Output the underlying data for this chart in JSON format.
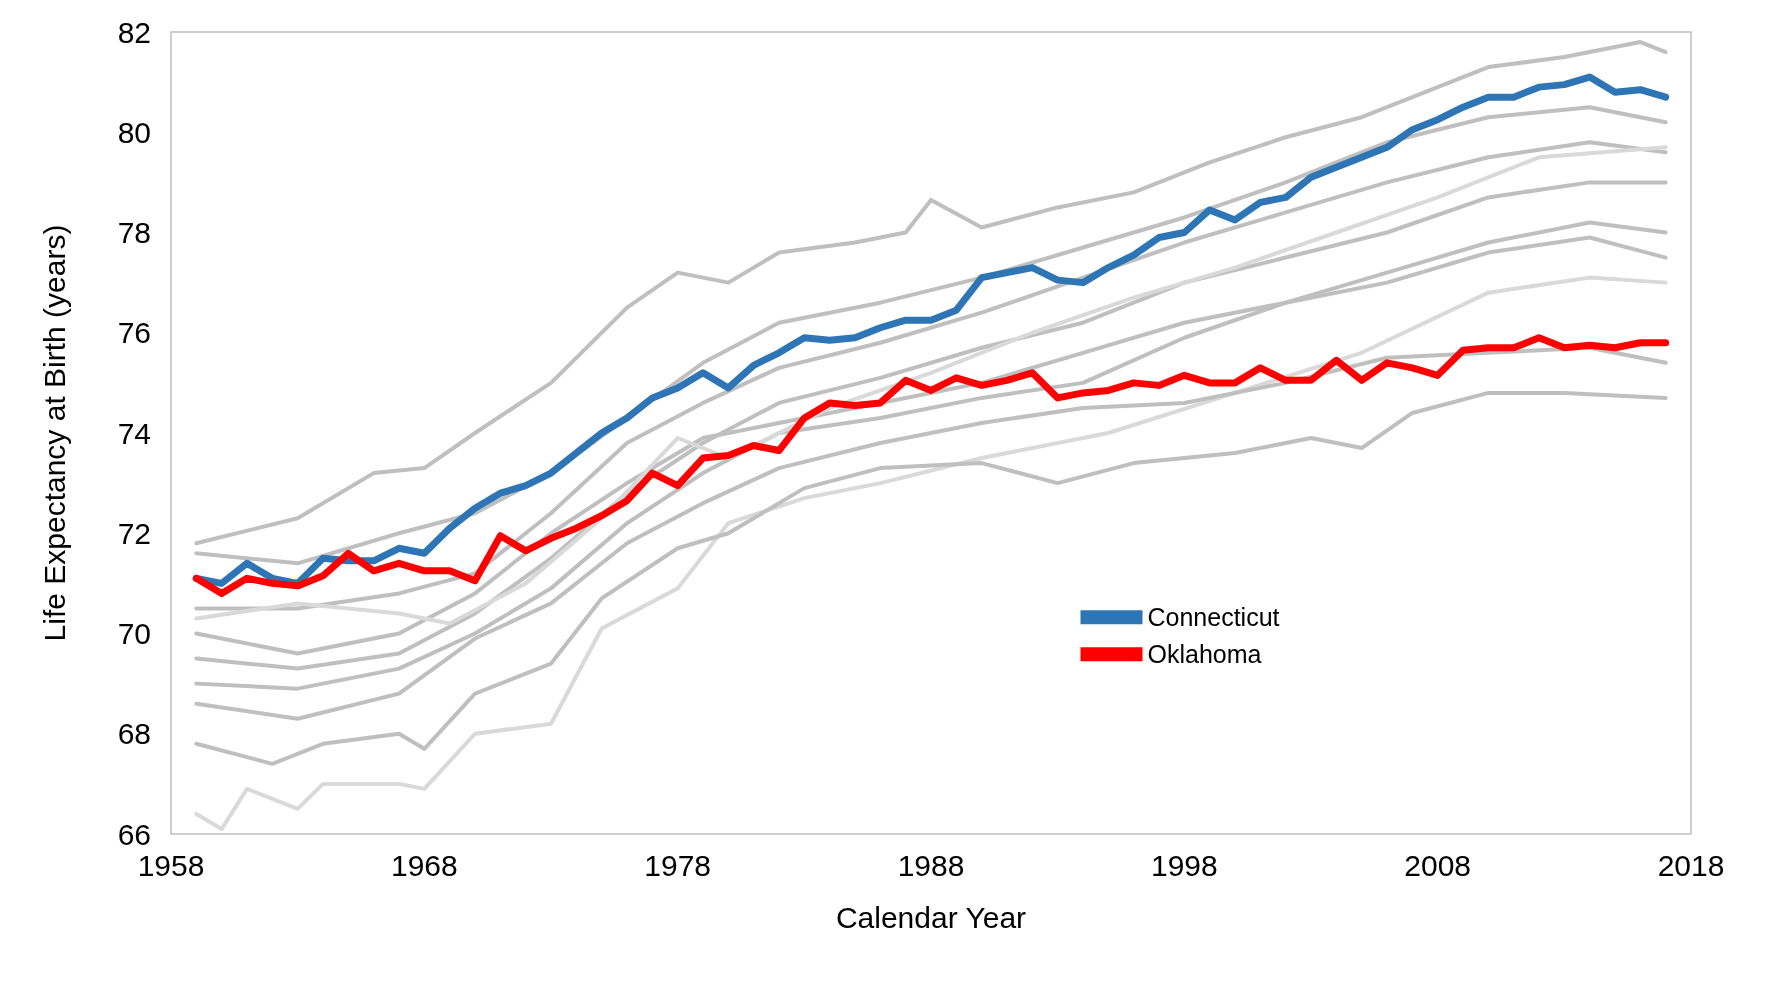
{
  "chart_data": {
    "type": "line",
    "xlabel": "Calendar Year",
    "ylabel": "Life Expectancy at Birth (years)",
    "xlim": [
      1958,
      2018
    ],
    "xticks": [
      1958,
      1968,
      1978,
      1988,
      1998,
      2008,
      2018
    ],
    "ylim": [
      66,
      82
    ],
    "yticks": [
      66,
      68,
      70,
      72,
      74,
      76,
      78,
      80,
      82
    ],
    "grid": false,
    "legend": "bottom",
    "marker": "none",
    "line_style": "solid",
    "series": [
      {
        "color": "#bfbfbf",
        "x": [
          1959,
          1963,
          1966,
          1968,
          1970,
          1973,
          1976,
          1978,
          1980,
          1982,
          1985,
          1987,
          1988,
          1990,
          1993,
          1996,
          1999,
          2002,
          2005,
          2008,
          2010,
          2013,
          2016,
          2017
        ],
        "values": [
          71.8,
          72.3,
          73.2,
          73.3,
          74.0,
          75.0,
          76.5,
          77.2,
          77.0,
          77.6,
          77.8,
          78.0,
          78.65,
          78.1,
          78.5,
          78.8,
          79.4,
          79.9,
          80.3,
          80.9,
          81.3,
          81.5,
          81.8,
          81.6
        ]
      },
      {
        "color": "#d9d9d9",
        "x": [
          1959,
          1960,
          1961,
          1963,
          1964,
          1967,
          1968,
          1970,
          1973,
          1975,
          1978,
          1980,
          1983,
          1986,
          1990,
          1995,
          2000,
          2005,
          2010,
          2014,
          2017
        ],
        "values": [
          66.4,
          66.1,
          66.9,
          66.5,
          67.0,
          67.0,
          66.9,
          68.0,
          68.2,
          70.1,
          70.9,
          72.2,
          72.7,
          73.0,
          73.5,
          74.0,
          74.8,
          75.6,
          76.8,
          77.1,
          77.0
        ]
      },
      {
        "color": "#bfbfbf",
        "x": [
          1959,
          1962,
          1964,
          1967,
          1968,
          1970,
          1973,
          1975,
          1978,
          1980,
          1983,
          1986,
          1990,
          1993,
          1996,
          2000,
          2003,
          2005,
          2007,
          2010,
          2013,
          2017
        ],
        "values": [
          67.8,
          67.4,
          67.8,
          68.0,
          67.7,
          68.8,
          69.4,
          70.7,
          71.7,
          72.0,
          72.9,
          73.3,
          73.4,
          73.0,
          73.4,
          73.6,
          73.9,
          73.7,
          74.4,
          74.8,
          74.8,
          74.7
        ]
      },
      {
        "color": "#bfbfbf",
        "x": [
          1959,
          1963,
          1967,
          1970,
          1973,
          1976,
          1979,
          1982,
          1986,
          1990,
          1994,
          1998,
          2002,
          2006,
          2010,
          2014,
          2017
        ],
        "values": [
          68.6,
          68.3,
          68.8,
          69.9,
          70.6,
          71.8,
          72.6,
          73.3,
          73.8,
          74.2,
          74.5,
          74.6,
          75.0,
          75.5,
          75.6,
          75.7,
          75.4
        ]
      },
      {
        "color": "#bfbfbf",
        "x": [
          1959,
          1963,
          1967,
          1970,
          1973,
          1976,
          1979,
          1982,
          1986,
          1990,
          1994,
          1998,
          2002,
          2006,
          2010,
          2014,
          2017
        ],
        "values": [
          69.5,
          69.3,
          69.6,
          70.4,
          71.5,
          72.8,
          73.8,
          74.6,
          75.1,
          75.7,
          76.2,
          77.0,
          77.5,
          78.0,
          78.7,
          79.0,
          79.0
        ]
      },
      {
        "color": "#bfbfbf",
        "x": [
          1959,
          1963,
          1967,
          1970,
          1973,
          1976,
          1979,
          1982,
          1986,
          1990,
          1994,
          1998,
          2002,
          2006,
          2010,
          2014,
          2017
        ],
        "values": [
          70.5,
          70.5,
          70.8,
          71.2,
          72.4,
          73.8,
          74.6,
          75.3,
          75.8,
          76.4,
          77.1,
          77.8,
          78.4,
          79.0,
          79.5,
          79.8,
          79.6
        ]
      },
      {
        "color": "#bfbfbf",
        "x": [
          1959,
          1963,
          1967,
          1970,
          1973,
          1976,
          1979,
          1982,
          1986,
          1990,
          1994,
          1998,
          2002,
          2006,
          2010,
          2014,
          2017
        ],
        "values": [
          71.6,
          71.4,
          72.0,
          72.4,
          73.2,
          74.3,
          75.4,
          76.2,
          76.6,
          77.1,
          77.7,
          78.3,
          79.0,
          79.8,
          80.3,
          80.5,
          80.2
        ]
      },
      {
        "color": "#bfbfbf",
        "x": [
          1959,
          1963,
          1967,
          1970,
          1973,
          1976,
          1979,
          1982,
          1986,
          1990,
          1994,
          1998,
          2002,
          2006,
          2010,
          2014,
          2017
        ],
        "values": [
          70.0,
          69.6,
          70.0,
          70.8,
          72.0,
          73.0,
          73.9,
          74.2,
          74.6,
          75.0,
          75.6,
          76.2,
          76.6,
          77.2,
          77.8,
          78.2,
          78.0
        ]
      },
      {
        "color": "#bfbfbf",
        "x": [
          1959,
          1963,
          1967,
          1970,
          1973,
          1976,
          1979,
          1982,
          1986,
          1990,
          1994,
          1998,
          2002,
          2006,
          2010,
          2014,
          2017
        ],
        "values": [
          69.0,
          68.9,
          69.3,
          70.0,
          70.9,
          72.2,
          73.2,
          74.0,
          74.3,
          74.7,
          75.0,
          75.9,
          76.6,
          77.0,
          77.6,
          77.9,
          77.5
        ]
      },
      {
        "color": "#d9d9d9",
        "x": [
          1959,
          1963,
          1967,
          1969,
          1972,
          1975,
          1978,
          1980,
          1984,
          1988,
          1992,
          1996,
          2000,
          2004,
          2008,
          2012,
          2017
        ],
        "values": [
          70.3,
          70.6,
          70.4,
          70.2,
          71.0,
          72.3,
          73.9,
          73.5,
          74.5,
          75.2,
          76.0,
          76.7,
          77.3,
          78.0,
          78.7,
          79.5,
          79.7
        ]
      },
      {
        "name": "Connecticut",
        "color": "#2e75b6",
        "x": [
          1959,
          1960,
          1961,
          1962,
          1963,
          1964,
          1965,
          1966,
          1967,
          1968,
          1969,
          1970,
          1971,
          1972,
          1973,
          1974,
          1975,
          1976,
          1977,
          1978,
          1979,
          1980,
          1981,
          1982,
          1983,
          1984,
          1985,
          1986,
          1987,
          1988,
          1989,
          1990,
          1991,
          1992,
          1993,
          1994,
          1995,
          1996,
          1997,
          1998,
          1999,
          2000,
          2001,
          2002,
          2003,
          2004,
          2005,
          2006,
          2007,
          2008,
          2009,
          2010,
          2011,
          2012,
          2013,
          2014,
          2015,
          2016,
          2017
        ],
        "values": [
          71.1,
          71.0,
          71.4,
          71.1,
          71.0,
          71.5,
          71.45,
          71.45,
          71.7,
          71.6,
          72.1,
          72.5,
          72.8,
          72.95,
          73.2,
          73.6,
          74.0,
          74.3,
          74.7,
          74.9,
          75.2,
          74.9,
          75.35,
          75.6,
          75.9,
          75.85,
          75.9,
          76.1,
          76.25,
          76.25,
          76.45,
          77.1,
          77.2,
          77.3,
          77.05,
          77.0,
          77.3,
          77.55,
          77.9,
          78.0,
          78.45,
          78.25,
          78.6,
          78.7,
          79.1,
          79.3,
          79.5,
          79.7,
          80.05,
          80.25,
          80.5,
          80.7,
          80.7,
          80.9,
          80.95,
          81.1,
          80.8,
          80.85,
          80.7
        ]
      },
      {
        "name": "Oklahoma",
        "color": "#ff0000",
        "x": [
          1959,
          1960,
          1961,
          1962,
          1963,
          1964,
          1965,
          1966,
          1967,
          1968,
          1969,
          1970,
          1971,
          1972,
          1973,
          1974,
          1975,
          1976,
          1977,
          1978,
          1979,
          1980,
          1981,
          1982,
          1983,
          1984,
          1985,
          1986,
          1987,
          1988,
          1989,
          1990,
          1991,
          1992,
          1993,
          1994,
          1995,
          1996,
          1997,
          1998,
          1999,
          2000,
          2001,
          2002,
          2003,
          2004,
          2005,
          2006,
          2007,
          2008,
          2009,
          2010,
          2011,
          2012,
          2013,
          2014,
          2015,
          2016,
          2017
        ],
        "values": [
          71.1,
          70.8,
          71.1,
          71.0,
          70.95,
          71.15,
          71.6,
          71.25,
          71.4,
          71.25,
          71.25,
          71.05,
          71.95,
          71.65,
          71.9,
          72.1,
          72.35,
          72.65,
          73.2,
          72.95,
          73.5,
          73.55,
          73.75,
          73.65,
          74.3,
          74.6,
          74.55,
          74.6,
          75.05,
          74.85,
          75.1,
          74.95,
          75.05,
          75.2,
          74.7,
          74.8,
          74.85,
          75.0,
          74.95,
          75.15,
          75.0,
          75.0,
          75.3,
          75.05,
          75.05,
          75.45,
          75.05,
          75.4,
          75.3,
          75.15,
          75.65,
          75.7,
          75.7,
          75.9,
          75.7,
          75.75,
          75.7,
          75.8,
          75.8
        ]
      }
    ]
  }
}
